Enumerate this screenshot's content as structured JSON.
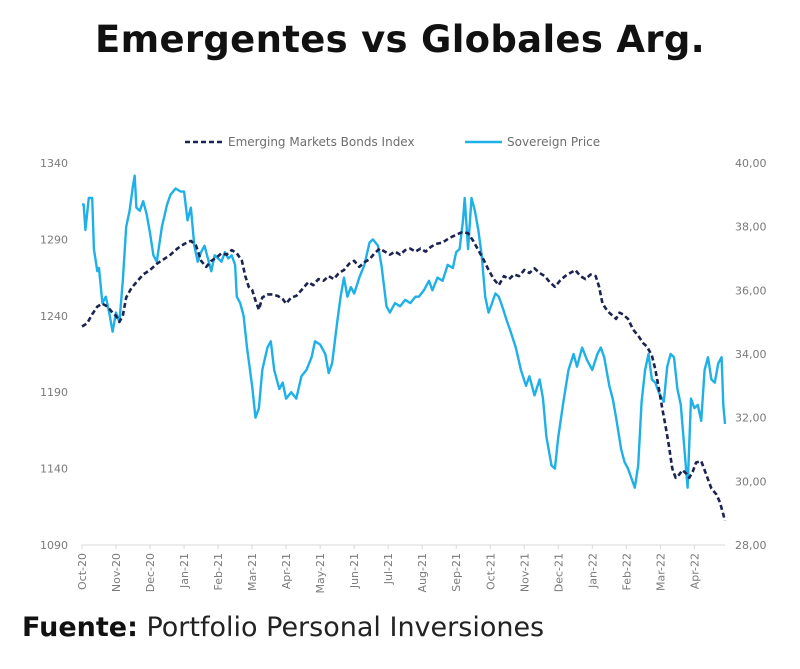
{
  "title": "Emergentes vs Globales Arg.",
  "footer": {
    "label": "Fuente:",
    "source": "Portfolio Personal Inversiones"
  },
  "chart_data": {
    "type": "line",
    "title": "Emergentes vs Globales Arg.",
    "xlabel": "",
    "ylabel_left": "",
    "ylabel_right": "",
    "x_unit": "months since Oct-20",
    "x_range": [
      0,
      18.9
    ],
    "x_ticks": [
      "Oct-20",
      "Nov-20",
      "Dec-20",
      "Jan-21",
      "Feb-21",
      "Mar-21",
      "Apr-21",
      "May-21",
      "Jun-21",
      "Jul-21",
      "Aug-21",
      "Sep-21",
      "Oct-21",
      "Nov-21",
      "Dec-21",
      "Jan-22",
      "Feb-22",
      "Mar-22",
      "Apr-22"
    ],
    "y_left": {
      "range": [
        1090,
        1340
      ],
      "ticks": [
        "1090",
        "1140",
        "1190",
        "1240",
        "1290",
        "1340"
      ]
    },
    "y_right": {
      "range": [
        28,
        40
      ],
      "ticks": [
        "28,00",
        "30,00",
        "32,00",
        "34,00",
        "36,00",
        "38,00",
        "40,00"
      ]
    },
    "grid": false,
    "legend_position": "top-center",
    "colors": {
      "emerging": "#1b2350",
      "sovereign": "#1fb0e8",
      "axis": "#d9d9d9"
    },
    "series": [
      {
        "name": "Emerging Markets Bonds Index",
        "axis": "left",
        "style": "dashed",
        "points": [
          [
            0,
            1233
          ],
          [
            0.15,
            1235
          ],
          [
            0.3,
            1241
          ],
          [
            0.45,
            1246
          ],
          [
            0.6,
            1248
          ],
          [
            0.75,
            1246
          ],
          [
            0.9,
            1242
          ],
          [
            1.0,
            1240
          ],
          [
            1.1,
            1236
          ],
          [
            1.2,
            1240
          ],
          [
            1.3,
            1252
          ],
          [
            1.45,
            1258
          ],
          [
            1.6,
            1262
          ],
          [
            1.8,
            1267
          ],
          [
            2.0,
            1270
          ],
          [
            2.2,
            1274
          ],
          [
            2.4,
            1277
          ],
          [
            2.6,
            1280
          ],
          [
            2.8,
            1284
          ],
          [
            3.0,
            1287
          ],
          [
            3.2,
            1289
          ],
          [
            3.35,
            1286
          ],
          [
            3.5,
            1276
          ],
          [
            3.65,
            1272
          ],
          [
            3.8,
            1276
          ],
          [
            3.95,
            1278
          ],
          [
            4.1,
            1281
          ],
          [
            4.25,
            1280
          ],
          [
            4.4,
            1283
          ],
          [
            4.55,
            1281
          ],
          [
            4.7,
            1276
          ],
          [
            4.8,
            1266
          ],
          [
            4.9,
            1259
          ],
          [
            5.0,
            1257
          ],
          [
            5.1,
            1250
          ],
          [
            5.2,
            1244
          ],
          [
            5.3,
            1252
          ],
          [
            5.45,
            1254
          ],
          [
            5.6,
            1254
          ],
          [
            5.75,
            1253
          ],
          [
            5.9,
            1251
          ],
          [
            6.0,
            1248
          ],
          [
            6.15,
            1252
          ],
          [
            6.3,
            1253
          ],
          [
            6.5,
            1258
          ],
          [
            6.65,
            1262
          ],
          [
            6.8,
            1260
          ],
          [
            6.95,
            1264
          ],
          [
            7.1,
            1263
          ],
          [
            7.25,
            1266
          ],
          [
            7.4,
            1264
          ],
          [
            7.55,
            1268
          ],
          [
            7.7,
            1270
          ],
          [
            7.85,
            1274
          ],
          [
            8.0,
            1276
          ],
          [
            8.15,
            1272
          ],
          [
            8.3,
            1275
          ],
          [
            8.45,
            1277
          ],
          [
            8.6,
            1281
          ],
          [
            8.75,
            1284
          ],
          [
            8.9,
            1282
          ],
          [
            9.05,
            1280
          ],
          [
            9.2,
            1282
          ],
          [
            9.35,
            1280
          ],
          [
            9.5,
            1283
          ],
          [
            9.65,
            1284
          ],
          [
            9.8,
            1282
          ],
          [
            9.95,
            1284
          ],
          [
            10.1,
            1282
          ],
          [
            10.25,
            1285
          ],
          [
            10.4,
            1287
          ],
          [
            10.6,
            1288
          ],
          [
            10.8,
            1291
          ],
          [
            11.0,
            1293
          ],
          [
            11.2,
            1295
          ],
          [
            11.35,
            1294
          ],
          [
            11.5,
            1289
          ],
          [
            11.65,
            1283
          ],
          [
            11.8,
            1277
          ],
          [
            11.95,
            1270
          ],
          [
            12.1,
            1264
          ],
          [
            12.25,
            1260
          ],
          [
            12.4,
            1266
          ],
          [
            12.55,
            1264
          ],
          [
            12.7,
            1267
          ],
          [
            12.85,
            1266
          ],
          [
            13.0,
            1270
          ],
          [
            13.15,
            1268
          ],
          [
            13.3,
            1271
          ],
          [
            13.45,
            1268
          ],
          [
            13.6,
            1266
          ],
          [
            13.75,
            1262
          ],
          [
            13.9,
            1259
          ],
          [
            14.05,
            1263
          ],
          [
            14.2,
            1266
          ],
          [
            14.35,
            1268
          ],
          [
            14.5,
            1270
          ],
          [
            14.65,
            1266
          ],
          [
            14.8,
            1264
          ],
          [
            14.95,
            1267
          ],
          [
            15.1,
            1266
          ],
          [
            15.2,
            1259
          ],
          [
            15.3,
            1248
          ],
          [
            15.45,
            1243
          ],
          [
            15.6,
            1240
          ],
          [
            15.7,
            1238
          ],
          [
            15.8,
            1242
          ],
          [
            15.9,
            1241
          ],
          [
            16.05,
            1238
          ],
          [
            16.2,
            1231
          ],
          [
            16.35,
            1227
          ],
          [
            16.5,
            1222
          ],
          [
            16.6,
            1220
          ],
          [
            16.75,
            1214
          ],
          [
            16.85,
            1205
          ],
          [
            16.95,
            1193
          ],
          [
            17.05,
            1180
          ],
          [
            17.15,
            1168
          ],
          [
            17.25,
            1155
          ],
          [
            17.35,
            1140
          ],
          [
            17.45,
            1134
          ],
          [
            17.55,
            1136
          ],
          [
            17.65,
            1139
          ],
          [
            17.75,
            1137
          ],
          [
            17.85,
            1134
          ],
          [
            17.95,
            1138
          ],
          [
            18.05,
            1144
          ],
          [
            18.2,
            1145
          ],
          [
            18.35,
            1136
          ],
          [
            18.5,
            1127
          ],
          [
            18.65,
            1123
          ],
          [
            18.75,
            1118
          ],
          [
            18.85,
            1110
          ],
          [
            18.9,
            1106
          ]
        ]
      },
      {
        "name": "Sovereign Price",
        "axis": "right",
        "style": "solid",
        "points": [
          [
            0,
            38.7
          ],
          [
            0.05,
            38.7
          ],
          [
            0.1,
            37.9
          ],
          [
            0.2,
            38.9
          ],
          [
            0.3,
            38.9
          ],
          [
            0.35,
            37.3
          ],
          [
            0.45,
            36.6
          ],
          [
            0.5,
            36.7
          ],
          [
            0.6,
            35.6
          ],
          [
            0.7,
            35.8
          ],
          [
            0.8,
            35.3
          ],
          [
            0.9,
            34.7
          ],
          [
            1.0,
            35.3
          ],
          [
            1.1,
            35.0
          ],
          [
            1.2,
            36.3
          ],
          [
            1.3,
            38.0
          ],
          [
            1.4,
            38.5
          ],
          [
            1.5,
            39.3
          ],
          [
            1.55,
            39.6
          ],
          [
            1.6,
            38.6
          ],
          [
            1.7,
            38.5
          ],
          [
            1.8,
            38.8
          ],
          [
            1.9,
            38.4
          ],
          [
            2.0,
            37.8
          ],
          [
            2.1,
            37.1
          ],
          [
            2.2,
            36.9
          ],
          [
            2.35,
            38.0
          ],
          [
            2.5,
            38.7
          ],
          [
            2.6,
            39.0
          ],
          [
            2.75,
            39.2
          ],
          [
            2.9,
            39.1
          ],
          [
            3.0,
            39.1
          ],
          [
            3.1,
            38.2
          ],
          [
            3.2,
            38.6
          ],
          [
            3.3,
            37.4
          ],
          [
            3.4,
            36.9
          ],
          [
            3.5,
            37.2
          ],
          [
            3.6,
            37.4
          ],
          [
            3.7,
            37.0
          ],
          [
            3.8,
            36.6
          ],
          [
            3.9,
            37.1
          ],
          [
            4.0,
            37.0
          ],
          [
            4.1,
            36.9
          ],
          [
            4.2,
            37.2
          ],
          [
            4.3,
            37.0
          ],
          [
            4.4,
            37.1
          ],
          [
            4.5,
            36.8
          ],
          [
            4.55,
            35.8
          ],
          [
            4.65,
            35.6
          ],
          [
            4.75,
            35.2
          ],
          [
            4.85,
            34.2
          ],
          [
            5.0,
            33.0
          ],
          [
            5.1,
            32.0
          ],
          [
            5.2,
            32.3
          ],
          [
            5.3,
            33.5
          ],
          [
            5.45,
            34.2
          ],
          [
            5.55,
            34.4
          ],
          [
            5.65,
            33.5
          ],
          [
            5.8,
            32.9
          ],
          [
            5.9,
            33.1
          ],
          [
            6.0,
            32.6
          ],
          [
            6.15,
            32.8
          ],
          [
            6.3,
            32.6
          ],
          [
            6.45,
            33.3
          ],
          [
            6.6,
            33.5
          ],
          [
            6.75,
            33.9
          ],
          [
            6.85,
            34.4
          ],
          [
            7.0,
            34.3
          ],
          [
            7.15,
            34.0
          ],
          [
            7.25,
            33.4
          ],
          [
            7.35,
            33.7
          ],
          [
            7.5,
            35.0
          ],
          [
            7.6,
            35.8
          ],
          [
            7.7,
            36.4
          ],
          [
            7.8,
            35.8
          ],
          [
            7.9,
            36.1
          ],
          [
            8.0,
            35.9
          ],
          [
            8.15,
            36.4
          ],
          [
            8.3,
            36.8
          ],
          [
            8.45,
            37.5
          ],
          [
            8.55,
            37.6
          ],
          [
            8.7,
            37.4
          ],
          [
            8.8,
            36.8
          ],
          [
            8.95,
            35.5
          ],
          [
            9.05,
            35.3
          ],
          [
            9.2,
            35.6
          ],
          [
            9.35,
            35.5
          ],
          [
            9.5,
            35.7
          ],
          [
            9.65,
            35.6
          ],
          [
            9.8,
            35.8
          ],
          [
            9.9,
            35.8
          ],
          [
            10.05,
            36.0
          ],
          [
            10.2,
            36.3
          ],
          [
            10.3,
            36.0
          ],
          [
            10.45,
            36.4
          ],
          [
            10.6,
            36.3
          ],
          [
            10.75,
            36.8
          ],
          [
            10.9,
            36.7
          ],
          [
            11.0,
            37.2
          ],
          [
            11.1,
            37.3
          ],
          [
            11.2,
            38.2
          ],
          [
            11.25,
            38.9
          ],
          [
            11.35,
            37.3
          ],
          [
            11.45,
            38.9
          ],
          [
            11.55,
            38.5
          ],
          [
            11.65,
            37.9
          ],
          [
            11.75,
            37.1
          ],
          [
            11.85,
            35.8
          ],
          [
            11.95,
            35.3
          ],
          [
            12.05,
            35.6
          ],
          [
            12.15,
            35.9
          ],
          [
            12.25,
            35.8
          ],
          [
            12.35,
            35.5
          ],
          [
            12.5,
            35.0
          ],
          [
            12.6,
            34.7
          ],
          [
            12.75,
            34.2
          ],
          [
            12.9,
            33.5
          ],
          [
            13.05,
            33.0
          ],
          [
            13.15,
            33.3
          ],
          [
            13.3,
            32.7
          ],
          [
            13.45,
            33.2
          ],
          [
            13.55,
            32.6
          ],
          [
            13.65,
            31.4
          ],
          [
            13.8,
            30.5
          ],
          [
            13.9,
            30.4
          ],
          [
            14.0,
            31.4
          ],
          [
            14.15,
            32.5
          ],
          [
            14.3,
            33.5
          ],
          [
            14.45,
            34.0
          ],
          [
            14.55,
            33.6
          ],
          [
            14.7,
            34.2
          ],
          [
            14.85,
            33.8
          ],
          [
            15.0,
            33.5
          ],
          [
            15.15,
            34.0
          ],
          [
            15.25,
            34.2
          ],
          [
            15.35,
            33.9
          ],
          [
            15.5,
            33.0
          ],
          [
            15.6,
            32.6
          ],
          [
            15.7,
            32.0
          ],
          [
            15.85,
            31.0
          ],
          [
            15.95,
            30.6
          ],
          [
            16.05,
            30.4
          ],
          [
            16.15,
            30.1
          ],
          [
            16.25,
            29.8
          ],
          [
            16.35,
            30.5
          ],
          [
            16.45,
            32.5
          ],
          [
            16.55,
            33.5
          ],
          [
            16.65,
            34.0
          ],
          [
            16.75,
            33.2
          ],
          [
            16.85,
            33.1
          ],
          [
            16.95,
            32.8
          ],
          [
            17.1,
            32.5
          ],
          [
            17.2,
            33.6
          ],
          [
            17.3,
            34.0
          ],
          [
            17.4,
            33.9
          ],
          [
            17.5,
            32.9
          ],
          [
            17.6,
            32.4
          ],
          [
            17.7,
            31.1
          ],
          [
            17.8,
            29.8
          ],
          [
            17.9,
            32.6
          ],
          [
            18.0,
            32.3
          ],
          [
            18.1,
            32.4
          ],
          [
            18.2,
            31.9
          ],
          [
            18.3,
            33.5
          ],
          [
            18.4,
            33.9
          ],
          [
            18.5,
            33.2
          ],
          [
            18.6,
            33.1
          ],
          [
            18.7,
            33.7
          ],
          [
            18.8,
            33.9
          ],
          [
            18.85,
            32.4
          ],
          [
            18.9,
            31.8
          ]
        ]
      }
    ]
  }
}
